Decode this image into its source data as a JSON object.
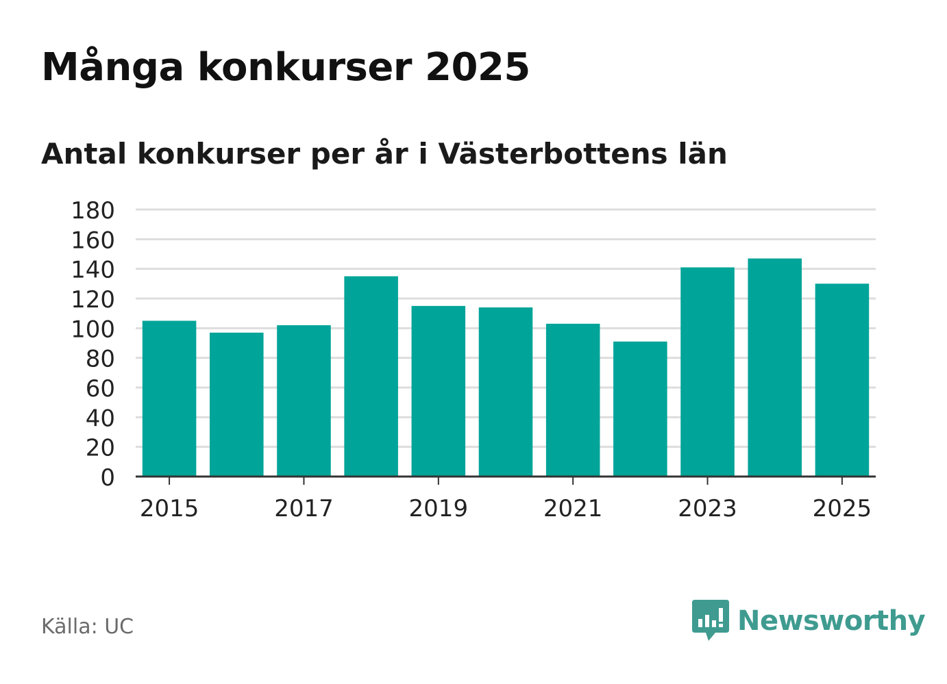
{
  "header": {
    "title": "Många konkurser 2025",
    "subtitle": "Antal konkurser per år i Västerbottens län"
  },
  "footer": {
    "source": "Källa: UC",
    "brand": "Newsworthy",
    "brand_icon": "bar-chart-speech-bubble-icon"
  },
  "colors": {
    "bar": "#00a499",
    "grid": "#dddddd",
    "axis": "#333333",
    "brand": "#3f9b90"
  },
  "chart_data": {
    "type": "bar",
    "categories": [
      "2015",
      "2016",
      "2017",
      "2018",
      "2019",
      "2020",
      "2021",
      "2022",
      "2023",
      "2024",
      "2025"
    ],
    "values": [
      105,
      97,
      102,
      135,
      115,
      114,
      103,
      91,
      141,
      147,
      130
    ],
    "x_tick_labels": [
      "2015",
      "2017",
      "2019",
      "2021",
      "2023",
      "2025"
    ],
    "y_ticks": [
      0,
      20,
      40,
      60,
      80,
      100,
      120,
      140,
      160,
      180
    ],
    "ylim": [
      0,
      180
    ],
    "grid": true,
    "legend": "none"
  }
}
